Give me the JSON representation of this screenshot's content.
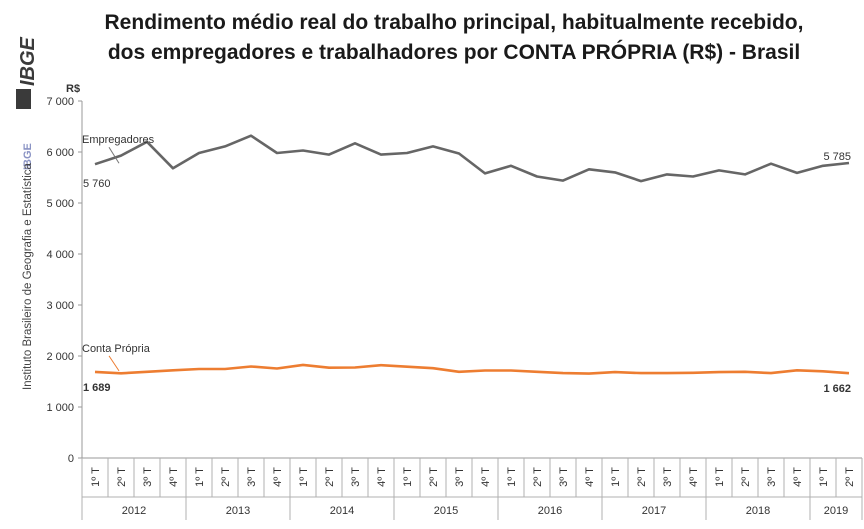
{
  "title_lines": [
    "Rendimento médio real do trabalho principal, habitualmente recebido,",
    "dos empregadores e trabalhadores por CONTA PRÓPRIA (R$) - Brasil"
  ],
  "sidebar": {
    "brand": "IBGE",
    "ibge_label": "IBGE",
    "institute": "Instituto Brasileiro de Geografia e Estatística"
  },
  "chart_data": {
    "type": "line",
    "ylabel": "R$",
    "ylim": [
      0,
      7000
    ],
    "yticks": [
      0,
      1000,
      2000,
      3000,
      4000,
      5000,
      6000,
      7000
    ],
    "ytick_labels": [
      "0",
      "1 000",
      "2 000",
      "3 000",
      "4 000",
      "5 000",
      "6 000",
      "7 000"
    ],
    "grid": false,
    "quarter_labels": [
      "1º T",
      "2º T",
      "3º T",
      "4º T",
      "1º T",
      "2º T",
      "3º T",
      "4º T",
      "1º T",
      "2º T",
      "3º T",
      "4º T",
      "1º T",
      "2º T",
      "3º T",
      "4º T",
      "1º T",
      "2º T",
      "3º T",
      "4º T",
      "1º T",
      "2º T",
      "3º T",
      "4º T",
      "1º T",
      "2º T",
      "3º T",
      "4º T",
      "1º T",
      "2º T"
    ],
    "years": [
      {
        "label": "2012",
        "quarters": 4
      },
      {
        "label": "2013",
        "quarters": 4
      },
      {
        "label": "2014",
        "quarters": 4
      },
      {
        "label": "2015",
        "quarters": 4
      },
      {
        "label": "2016",
        "quarters": 4
      },
      {
        "label": "2017",
        "quarters": 4
      },
      {
        "label": "2018",
        "quarters": 4
      },
      {
        "label": "2019",
        "quarters": 2
      }
    ],
    "series": [
      {
        "name": "Empregadores",
        "color": "#666666",
        "values": [
          5760,
          5930,
          6200,
          5680,
          5980,
          6110,
          6320,
          5980,
          6030,
          5950,
          6170,
          5950,
          5980,
          6110,
          5970,
          5580,
          5730,
          5520,
          5440,
          5660,
          5600,
          5430,
          5560,
          5520,
          5640,
          5560,
          5770,
          5590,
          5730,
          5785
        ],
        "start_label": "5 760",
        "end_label": "5 785"
      },
      {
        "name": "Conta Própria",
        "color": "#ed7d31",
        "values": [
          1689,
          1660,
          1690,
          1720,
          1745,
          1745,
          1795,
          1755,
          1825,
          1770,
          1775,
          1820,
          1790,
          1760,
          1690,
          1715,
          1715,
          1690,
          1665,
          1655,
          1685,
          1665,
          1665,
          1670,
          1685,
          1690,
          1665,
          1720,
          1700,
          1662
        ],
        "start_label": "1 689",
        "end_label": "1 662"
      }
    ]
  }
}
